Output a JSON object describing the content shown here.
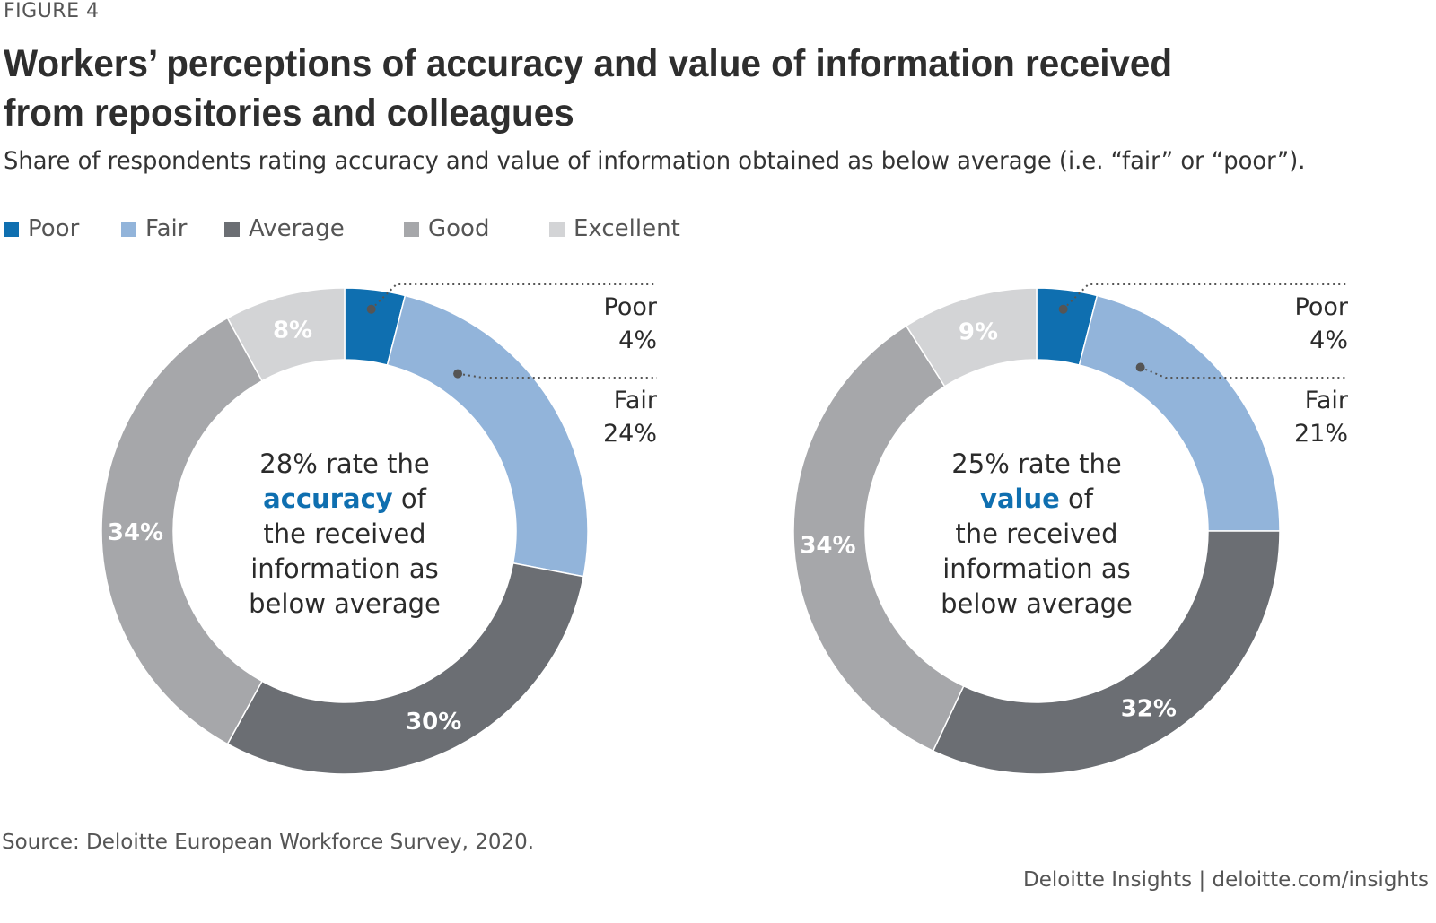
{
  "figure_label": "FIGURE 4",
  "title_lines": [
    "Workers’ perceptions of accuracy and value of information received",
    "from repositories and colleagues"
  ],
  "subtitle": "Share of respondents rating accuracy and value of information obtained as below average (i.e. “fair” or “poor”).",
  "legend": [
    {
      "label": "Poor",
      "color": "#0f6fb0"
    },
    {
      "label": "Fair",
      "color": "#92b4da"
    },
    {
      "label": "Average",
      "color": "#6b6e73"
    },
    {
      "label": "Good",
      "color": "#a6a7aa"
    },
    {
      "label": "Excellent",
      "color": "#d3d4d6"
    }
  ],
  "chart_data": [
    {
      "type": "pie",
      "variant": "donut",
      "categories": [
        "Poor",
        "Fair",
        "Average",
        "Good",
        "Excellent"
      ],
      "values": [
        4,
        24,
        30,
        34,
        8
      ],
      "slice_labels": [
        "",
        "",
        "30%",
        "34%",
        "8%"
      ],
      "callouts": [
        {
          "name": "Poor",
          "value": "4%"
        },
        {
          "name": "Fair",
          "value": "24%"
        }
      ],
      "center_text": {
        "pre": "28% rate the",
        "highlight": "accuracy",
        "post": "of",
        "rest": [
          "the received",
          "information as",
          "below average"
        ]
      }
    },
    {
      "type": "pie",
      "variant": "donut",
      "categories": [
        "Poor",
        "Fair",
        "Average",
        "Good",
        "Excellent"
      ],
      "values": [
        4,
        21,
        32,
        34,
        9
      ],
      "slice_labels": [
        "",
        "",
        "32%",
        "34%",
        "9%"
      ],
      "callouts": [
        {
          "name": "Poor",
          "value": "4%"
        },
        {
          "name": "Fair",
          "value": "21%"
        }
      ],
      "center_text": {
        "pre": "25% rate the",
        "highlight": "value",
        "post": "of",
        "rest": [
          "the received",
          "information as",
          "below average"
        ]
      }
    }
  ],
  "source": "Source: Deloitte European Workforce Survey, 2020.",
  "footer": "Deloitte Insights | deloitte.com/insights"
}
